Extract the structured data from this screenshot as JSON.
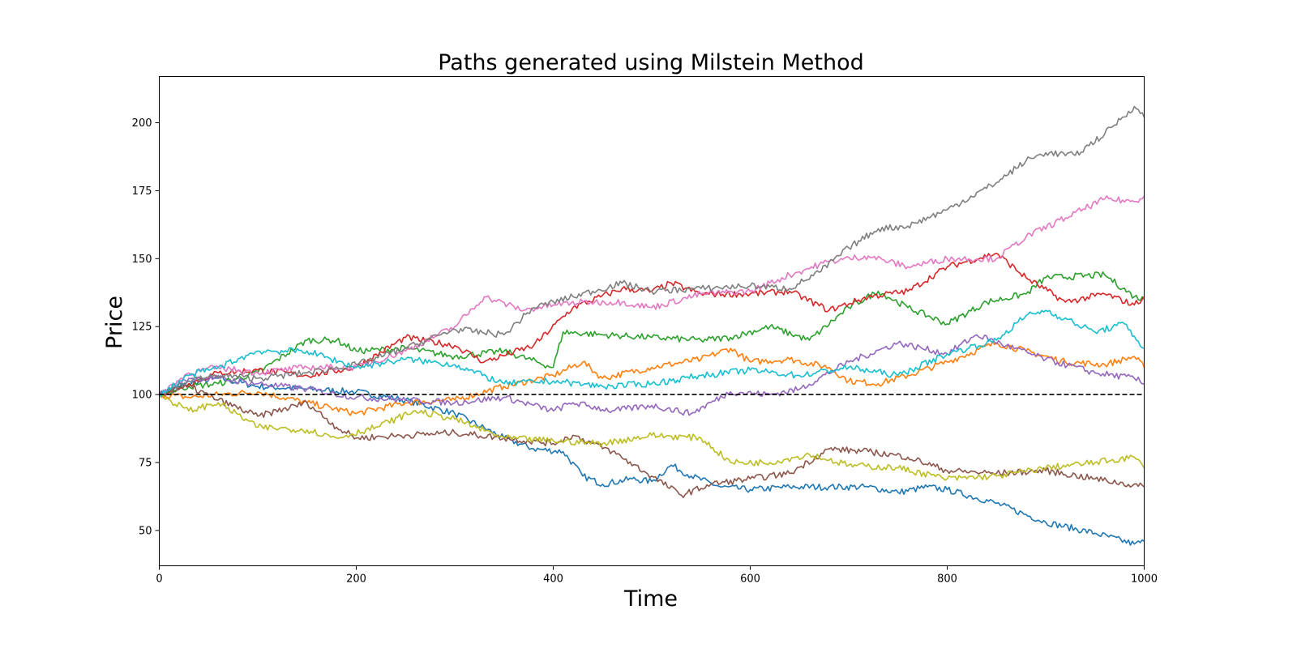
{
  "chart_data": {
    "type": "line",
    "title": "Paths generated using Milstein Method",
    "xlabel": "Time",
    "ylabel": "Price",
    "xlim": [
      0,
      1000
    ],
    "ylim": [
      37,
      217
    ],
    "xticks": [
      0,
      200,
      400,
      600,
      800,
      1000
    ],
    "yticks": [
      50,
      75,
      100,
      125,
      150,
      175,
      200
    ],
    "grid": false,
    "reference_line": {
      "y": 100,
      "style": "dashed",
      "color": "#000000"
    },
    "series": [
      {
        "color": "#1f77b4",
        "points": [
          [
            0,
            100
          ],
          [
            30,
            104
          ],
          [
            60,
            106
          ],
          [
            100,
            103
          ],
          [
            150,
            102
          ],
          [
            200,
            101
          ],
          [
            250,
            98
          ],
          [
            300,
            93
          ],
          [
            350,
            84
          ],
          [
            380,
            80
          ],
          [
            410,
            79
          ],
          [
            430,
            70
          ],
          [
            450,
            67
          ],
          [
            480,
            69
          ],
          [
            500,
            68
          ],
          [
            520,
            74
          ],
          [
            540,
            70
          ],
          [
            570,
            66
          ],
          [
            600,
            65
          ],
          [
            640,
            66
          ],
          [
            680,
            66
          ],
          [
            720,
            66
          ],
          [
            750,
            64
          ],
          [
            780,
            66
          ],
          [
            800,
            65
          ],
          [
            850,
            60
          ],
          [
            900,
            53
          ],
          [
            950,
            49
          ],
          [
            990,
            45
          ],
          [
            1000,
            46
          ]
        ]
      },
      {
        "color": "#ff7f0e",
        "points": [
          [
            0,
            100
          ],
          [
            30,
            99
          ],
          [
            60,
            100
          ],
          [
            100,
            101
          ],
          [
            150,
            97
          ],
          [
            200,
            93
          ],
          [
            250,
            97
          ],
          [
            300,
            98
          ],
          [
            350,
            103
          ],
          [
            400,
            107
          ],
          [
            430,
            112
          ],
          [
            450,
            106
          ],
          [
            500,
            110
          ],
          [
            550,
            113
          ],
          [
            580,
            117
          ],
          [
            600,
            112
          ],
          [
            640,
            113
          ],
          [
            680,
            110
          ],
          [
            700,
            105
          ],
          [
            730,
            104
          ],
          [
            760,
            107
          ],
          [
            800,
            112
          ],
          [
            850,
            119
          ],
          [
            880,
            116
          ],
          [
            920,
            112
          ],
          [
            960,
            111
          ],
          [
            990,
            114
          ],
          [
            1000,
            110
          ]
        ]
      },
      {
        "color": "#2ca02c",
        "points": [
          [
            0,
            100
          ],
          [
            30,
            103
          ],
          [
            60,
            104
          ],
          [
            100,
            108
          ],
          [
            150,
            120
          ],
          [
            180,
            120
          ],
          [
            200,
            116
          ],
          [
            250,
            117
          ],
          [
            300,
            114
          ],
          [
            350,
            116
          ],
          [
            400,
            110
          ],
          [
            410,
            123
          ],
          [
            450,
            122
          ],
          [
            500,
            121
          ],
          [
            550,
            120
          ],
          [
            580,
            121
          ],
          [
            620,
            125
          ],
          [
            660,
            120
          ],
          [
            700,
            132
          ],
          [
            730,
            138
          ],
          [
            760,
            132
          ],
          [
            800,
            126
          ],
          [
            840,
            134
          ],
          [
            880,
            137
          ],
          [
            900,
            143
          ],
          [
            960,
            144
          ],
          [
            990,
            136
          ],
          [
            1000,
            135
          ]
        ]
      },
      {
        "color": "#d62728",
        "points": [
          [
            0,
            100
          ],
          [
            30,
            104
          ],
          [
            60,
            108
          ],
          [
            100,
            109
          ],
          [
            150,
            107
          ],
          [
            200,
            110
          ],
          [
            250,
            121
          ],
          [
            300,
            118
          ],
          [
            330,
            112
          ],
          [
            380,
            118
          ],
          [
            420,
            132
          ],
          [
            470,
            139
          ],
          [
            500,
            138
          ],
          [
            520,
            141
          ],
          [
            550,
            137
          ],
          [
            600,
            137
          ],
          [
            640,
            138
          ],
          [
            680,
            131
          ],
          [
            720,
            136
          ],
          [
            760,
            138
          ],
          [
            800,
            147
          ],
          [
            850,
            152
          ],
          [
            880,
            143
          ],
          [
            920,
            134
          ],
          [
            960,
            137
          ],
          [
            990,
            133
          ],
          [
            1000,
            136
          ]
        ]
      },
      {
        "color": "#9467bd",
        "points": [
          [
            0,
            100
          ],
          [
            30,
            106
          ],
          [
            60,
            106
          ],
          [
            100,
            104
          ],
          [
            150,
            102
          ],
          [
            200,
            99
          ],
          [
            250,
            98
          ],
          [
            300,
            97
          ],
          [
            350,
            99
          ],
          [
            400,
            94
          ],
          [
            420,
            97
          ],
          [
            460,
            94
          ],
          [
            500,
            96
          ],
          [
            540,
            93
          ],
          [
            580,
            101
          ],
          [
            620,
            100
          ],
          [
            650,
            102
          ],
          [
            700,
            112
          ],
          [
            750,
            119
          ],
          [
            800,
            115
          ],
          [
            830,
            122
          ],
          [
            860,
            118
          ],
          [
            900,
            113
          ],
          [
            950,
            108
          ],
          [
            990,
            106
          ],
          [
            1000,
            104
          ]
        ]
      },
      {
        "color": "#8c564b",
        "points": [
          [
            0,
            100
          ],
          [
            30,
            103
          ],
          [
            60,
            98
          ],
          [
            100,
            92
          ],
          [
            150,
            97
          ],
          [
            180,
            88
          ],
          [
            200,
            84
          ],
          [
            250,
            85
          ],
          [
            300,
            86
          ],
          [
            350,
            84
          ],
          [
            400,
            82
          ],
          [
            420,
            85
          ],
          [
            460,
            79
          ],
          [
            500,
            70
          ],
          [
            530,
            63
          ],
          [
            560,
            67
          ],
          [
            600,
            69
          ],
          [
            640,
            71
          ],
          [
            680,
            80
          ],
          [
            720,
            79
          ],
          [
            760,
            77
          ],
          [
            800,
            72
          ],
          [
            850,
            71
          ],
          [
            900,
            72
          ],
          [
            950,
            69
          ],
          [
            1000,
            66
          ]
        ]
      },
      {
        "color": "#e377c2",
        "points": [
          [
            0,
            100
          ],
          [
            30,
            108
          ],
          [
            60,
            110
          ],
          [
            100,
            108
          ],
          [
            150,
            110
          ],
          [
            200,
            110
          ],
          [
            250,
            116
          ],
          [
            300,
            125
          ],
          [
            330,
            136
          ],
          [
            370,
            131
          ],
          [
            400,
            133
          ],
          [
            430,
            134
          ],
          [
            470,
            134
          ],
          [
            500,
            132
          ],
          [
            550,
            137
          ],
          [
            600,
            138
          ],
          [
            640,
            144
          ],
          [
            680,
            149
          ],
          [
            720,
            151
          ],
          [
            760,
            147
          ],
          [
            800,
            150
          ],
          [
            850,
            150
          ],
          [
            880,
            158
          ],
          [
            920,
            165
          ],
          [
            960,
            172
          ],
          [
            990,
            171
          ],
          [
            1000,
            173
          ]
        ]
      },
      {
        "color": "#7f7f7f",
        "points": [
          [
            0,
            100
          ],
          [
            30,
            105
          ],
          [
            60,
            107
          ],
          [
            100,
            106
          ],
          [
            150,
            108
          ],
          [
            200,
            111
          ],
          [
            250,
            117
          ],
          [
            300,
            124
          ],
          [
            350,
            122
          ],
          [
            380,
            132
          ],
          [
            420,
            136
          ],
          [
            470,
            141
          ],
          [
            500,
            138
          ],
          [
            550,
            139
          ],
          [
            600,
            140
          ],
          [
            640,
            139
          ],
          [
            670,
            145
          ],
          [
            700,
            154
          ],
          [
            730,
            161
          ],
          [
            760,
            162
          ],
          [
            800,
            168
          ],
          [
            850,
            178
          ],
          [
            880,
            186
          ],
          [
            900,
            189
          ],
          [
            930,
            188
          ],
          [
            960,
            196
          ],
          [
            990,
            206
          ],
          [
            1000,
            202
          ]
        ]
      },
      {
        "color": "#bcbd22",
        "points": [
          [
            0,
            100
          ],
          [
            30,
            94
          ],
          [
            60,
            97
          ],
          [
            100,
            88
          ],
          [
            150,
            87
          ],
          [
            180,
            84
          ],
          [
            220,
            88
          ],
          [
            260,
            94
          ],
          [
            300,
            91
          ],
          [
            350,
            84
          ],
          [
            400,
            83
          ],
          [
            450,
            82
          ],
          [
            500,
            85
          ],
          [
            550,
            84
          ],
          [
            580,
            75
          ],
          [
            620,
            75
          ],
          [
            660,
            78
          ],
          [
            700,
            74
          ],
          [
            750,
            73
          ],
          [
            800,
            69
          ],
          [
            850,
            70
          ],
          [
            900,
            73
          ],
          [
            950,
            75
          ],
          [
            990,
            77
          ],
          [
            1000,
            73
          ]
        ]
      },
      {
        "color": "#17becf",
        "points": [
          [
            0,
            100
          ],
          [
            30,
            107
          ],
          [
            60,
            110
          ],
          [
            100,
            116
          ],
          [
            150,
            116
          ],
          [
            200,
            110
          ],
          [
            250,
            113
          ],
          [
            300,
            111
          ],
          [
            350,
            104
          ],
          [
            400,
            105
          ],
          [
            450,
            103
          ],
          [
            500,
            104
          ],
          [
            550,
            107
          ],
          [
            600,
            109
          ],
          [
            650,
            107
          ],
          [
            700,
            110
          ],
          [
            750,
            107
          ],
          [
            800,
            115
          ],
          [
            850,
            120
          ],
          [
            880,
            129
          ],
          [
            900,
            131
          ],
          [
            950,
            123
          ],
          [
            980,
            126
          ],
          [
            1000,
            117
          ]
        ]
      }
    ]
  }
}
